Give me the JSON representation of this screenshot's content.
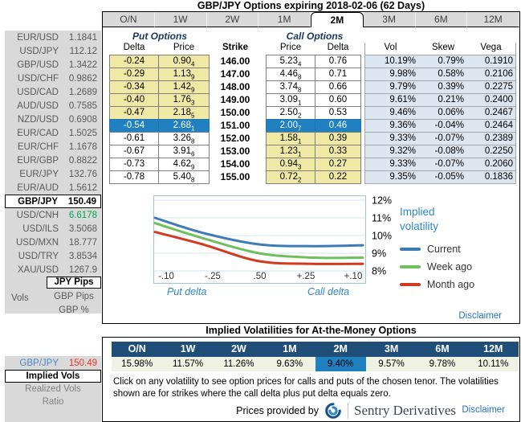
{
  "title": "GBP/JPY Options expiring 2018-02-06 (62 Days)",
  "sidebar": {
    "pairs": [
      {
        "name": "EUR/USD",
        "value": "1.1841"
      },
      {
        "name": "USD/JPY",
        "value": "112.12"
      },
      {
        "name": "GBP/USD",
        "value": "1.3422"
      },
      {
        "name": "USD/CHF",
        "value": "0.9862"
      },
      {
        "name": "USD/CAD",
        "value": "1.2689"
      },
      {
        "name": "AUD/USD",
        "value": "0.7585"
      },
      {
        "name": "NZD/USD",
        "value": "0.6908"
      },
      {
        "name": "EUR/CAD",
        "value": "1.5025"
      },
      {
        "name": "EUR/CHF",
        "value": "1.1678"
      },
      {
        "name": "EUR/GBP",
        "value": "0.8822"
      },
      {
        "name": "EUR/JPY",
        "value": "132.76"
      },
      {
        "name": "EUR/AUD",
        "value": "1.5612"
      },
      {
        "name": "GBP/JPY",
        "value": "150.49",
        "selected": true
      },
      {
        "name": "USD/CNH",
        "value": "6.6178",
        "green": true
      },
      {
        "name": "USD/ILS",
        "value": "3.5068"
      },
      {
        "name": "USD/MXN",
        "value": "18.777"
      },
      {
        "name": "USD/TRY",
        "value": "3.8534"
      },
      {
        "name": "XAU/USD",
        "value": "1267.9"
      }
    ],
    "vols_label": "Vols",
    "pips_modes": {
      "selected": "JPY Pips",
      "others": [
        "GBP Pips",
        "GBP %"
      ]
    }
  },
  "bottom_left": {
    "pair": {
      "name": "GBP/JPY",
      "value": "150.49"
    },
    "modes": {
      "selected": "Implied Vols",
      "others": [
        "Realized Vols",
        "Ratio"
      ]
    }
  },
  "tenors": [
    "O/N",
    "1W",
    "2W",
    "1M",
    "2M",
    "3M",
    "6M",
    "12M"
  ],
  "active_tenor": "2M",
  "options_table": {
    "put_header": "Put Options",
    "call_header": "Call Options",
    "columns": [
      "Delta",
      "Price",
      "Strike",
      "Price",
      "Delta",
      "Vol",
      "Skew",
      "Vega"
    ],
    "rows": [
      {
        "put_delta": "-0.24",
        "put_price": [
          "0.90",
          "4"
        ],
        "strike": "146.00",
        "call_price": [
          "5.23",
          "4"
        ],
        "call_delta": "0.76",
        "vol": "10.19%",
        "skew": "0.79%",
        "vega": "0.1910",
        "highlight": "put"
      },
      {
        "put_delta": "-0.29",
        "put_price": [
          "1.13",
          "9"
        ],
        "strike": "147.00",
        "call_price": [
          "4.46",
          "8"
        ],
        "call_delta": "0.71",
        "vol": "9.98%",
        "skew": "0.58%",
        "vega": "0.2106",
        "highlight": "put"
      },
      {
        "put_delta": "-0.34",
        "put_price": [
          "1.42",
          "9"
        ],
        "strike": "148.00",
        "call_price": [
          "3.74",
          "8"
        ],
        "call_delta": "0.66",
        "vol": "9.79%",
        "skew": "0.39%",
        "vega": "0.2275",
        "highlight": "put"
      },
      {
        "put_delta": "-0.40",
        "put_price": [
          "1.76",
          "3"
        ],
        "strike": "149.00",
        "call_price": [
          "3.09",
          "1"
        ],
        "call_delta": "0.60",
        "vol": "9.61%",
        "skew": "0.21%",
        "vega": "0.2400",
        "highlight": "put"
      },
      {
        "put_delta": "-0.47",
        "put_price": [
          "2.18",
          "5"
        ],
        "strike": "150.00",
        "call_price": [
          "2.50",
          "2"
        ],
        "call_delta": "0.53",
        "vol": "9.46%",
        "skew": "0.06%",
        "vega": "0.2467",
        "highlight": "put"
      },
      {
        "put_delta": "-0.54",
        "put_price": [
          "2.68",
          "1"
        ],
        "strike": "151.00",
        "call_price": [
          "2.00",
          "7"
        ],
        "call_delta": "0.46",
        "vol": "9.36%",
        "skew": "-0.04%",
        "vega": "0.2464",
        "highlight": "selected"
      },
      {
        "put_delta": "-0.61",
        "put_price": [
          "3.26",
          "8"
        ],
        "strike": "152.00",
        "call_price": [
          "1.58",
          "1"
        ],
        "call_delta": "0.39",
        "vol": "9.33%",
        "skew": "-0.07%",
        "vega": "0.2389",
        "highlight": "call"
      },
      {
        "put_delta": "-0.67",
        "put_price": [
          "3.91",
          "6"
        ],
        "strike": "153.00",
        "call_price": [
          "1.23",
          "1"
        ],
        "call_delta": "0.33",
        "vol": "9.32%",
        "skew": "-0.08%",
        "vega": "0.2250",
        "highlight": "call"
      },
      {
        "put_delta": "-0.73",
        "put_price": [
          "4.62",
          "9"
        ],
        "strike": "154.00",
        "call_price": [
          "0.94",
          "3"
        ],
        "call_delta": "0.27",
        "vol": "9.33%",
        "skew": "-0.07%",
        "vega": "0.2060",
        "highlight": "call"
      },
      {
        "put_delta": "-0.78",
        "put_price": [
          "5.40",
          "8"
        ],
        "strike": "155.00",
        "call_price": [
          "0.72",
          "2"
        ],
        "call_delta": "0.22",
        "vol": "9.35%",
        "skew": "-0.05%",
        "vega": "0.1836",
        "highlight": "call"
      }
    ]
  },
  "chart_data": {
    "type": "line",
    "x_tick_labels": [
      "-.10",
      "-.25",
      ".50",
      "+.25",
      "+.10"
    ],
    "yticks": [
      "12%",
      "11%",
      "10%",
      "9%",
      "8%"
    ],
    "ylim": [
      8,
      12
    ],
    "grid": true,
    "series": [
      {
        "name": "Current",
        "color": "#3E7CB8",
        "values": [
          11.0,
          10.15,
          9.5,
          9.4,
          9.45
        ]
      },
      {
        "name": "Week ago",
        "color": "#6FBF5C",
        "values": [
          10.7,
          9.85,
          9.0,
          8.75,
          8.75
        ]
      },
      {
        "name": "Month ago",
        "color": "#D23A1E",
        "values": [
          10.2,
          9.5,
          8.55,
          8.4,
          8.4
        ]
      }
    ],
    "legend_title": "Implied volatility",
    "legend_position": "right",
    "xlabel_left": "Put delta",
    "xlabel_right": "Call delta"
  },
  "disclaimer_label": "Disclaimer",
  "atm_panel": {
    "title": "Implied Volatilities for At-the-Money Options",
    "values": [
      "15.98%",
      "11.57%",
      "11.26%",
      "9.63%",
      "9.40%",
      "9.57%",
      "9.78%",
      "10.11%"
    ],
    "highlighted_index": 4,
    "note": "Click on any volatility to see option prices for calls and puts of the chosen tenor. The volatilities shown are for strikes where the call delta plus put delta equals zero.",
    "provided_by": "Prices provided by",
    "brand": "Sentry Derivatives",
    "disclaimer_label": "Disclaimer"
  },
  "colors": {
    "sidebar_bg": "#D9D9D9",
    "put_itm_yellow": "#F0E9A6",
    "selected_blue": "#2181C0",
    "vol_strip_blue": "#DCE6F1",
    "navy_header": "#1F4E79",
    "atm_row_cream": "#EFF1E2",
    "link_blue": "#2472C8",
    "green_value": "#00A650",
    "red_value": "#F5331F"
  }
}
